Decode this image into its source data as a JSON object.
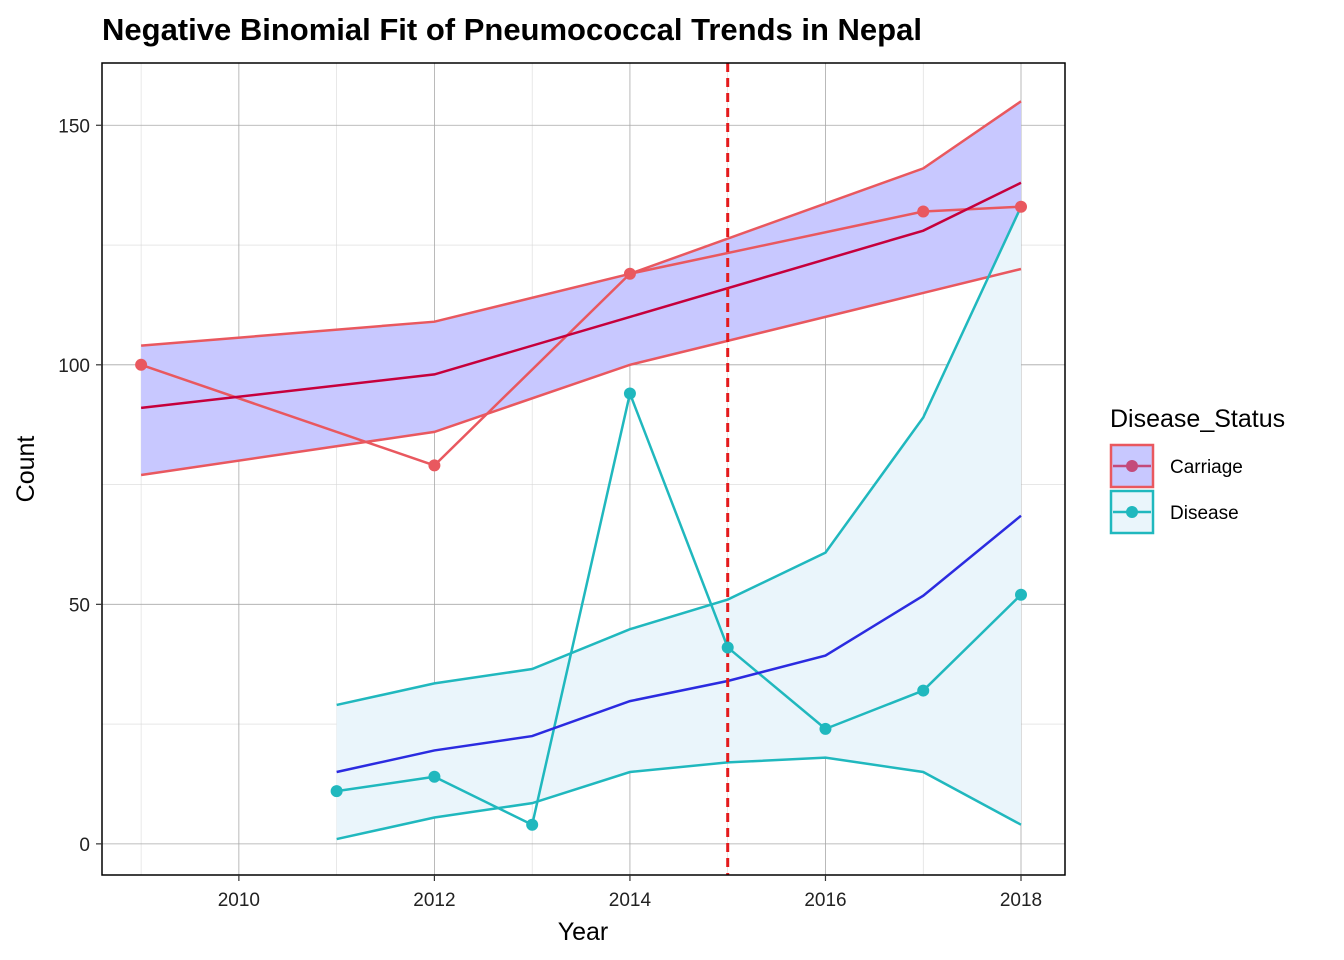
{
  "chart_data": {
    "type": "line",
    "title": "Negative Binomial Fit of Pneumococcal Trends in Nepal",
    "xlabel": "Year",
    "ylabel": "Count",
    "xlim": [
      2008.6,
      2018.45
    ],
    "ylim": [
      -6.5,
      163
    ],
    "x_ticks": [
      "2010",
      "2012",
      "2014",
      "2016",
      "2018"
    ],
    "y_ticks": [
      "0",
      "50",
      "100",
      "150"
    ],
    "grid": true,
    "legend": {
      "title": "Disease_Status",
      "position": "right",
      "entries": [
        "Carriage",
        "Disease"
      ]
    },
    "intervention_line": {
      "x": 2015,
      "color": "#E41A1C"
    },
    "series": [
      {
        "name": "Carriage",
        "color": "#E9585F",
        "observed": {
          "x": [
            2009,
            2012,
            2014,
            2017,
            2018
          ],
          "y": [
            100,
            79,
            119,
            132,
            133
          ]
        },
        "fit": {
          "x": [
            2009,
            2012,
            2014,
            2017,
            2018
          ],
          "y": [
            91,
            98,
            110,
            128,
            138
          ]
        },
        "ci_upper": {
          "x": [
            2009,
            2012,
            2014,
            2017,
            2018
          ],
          "y": [
            104,
            109,
            119,
            141,
            155
          ]
        },
        "ci_lower": {
          "x": [
            2009,
            2012,
            2014,
            2017,
            2018
          ],
          "y": [
            77,
            86,
            100,
            115,
            120
          ]
        },
        "ribbon_color": "#C8C8FF",
        "fit_color": "#C6003C"
      },
      {
        "name": "Disease",
        "color": "#20B8BE",
        "observed": {
          "x": [
            2011,
            2012,
            2013,
            2014,
            2015,
            2016,
            2017,
            2018
          ],
          "y": [
            11,
            14,
            4,
            94,
            41,
            24,
            32,
            52
          ]
        },
        "fit": {
          "x": [
            2011,
            2012,
            2013,
            2014,
            2015,
            2016,
            2017,
            2018
          ],
          "y": [
            15,
            19.5,
            22.5,
            29.8,
            34,
            39.3,
            51.8,
            68.5
          ]
        },
        "ci_upper": {
          "x": [
            2011,
            2012,
            2013,
            2014,
            2015,
            2016,
            2017,
            2018
          ],
          "y": [
            29,
            33.5,
            36.5,
            44.8,
            51,
            60.8,
            89,
            133
          ]
        },
        "ci_lower": {
          "x": [
            2011,
            2012,
            2013,
            2014,
            2015,
            2016,
            2017,
            2018
          ],
          "y": [
            1,
            5.5,
            8.5,
            15,
            17,
            18,
            15,
            4
          ]
        },
        "ribbon_color": "#EAF5FB",
        "fit_color": "#2B2BE0"
      }
    ]
  }
}
